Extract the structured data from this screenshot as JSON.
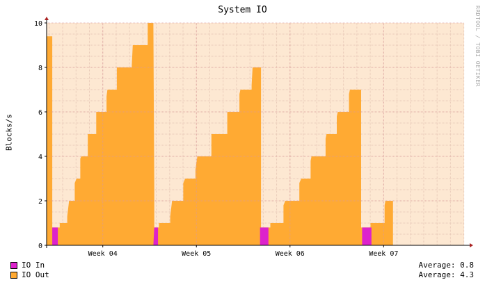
{
  "chart_data": {
    "type": "area",
    "title": "System IO",
    "ylabel": "Blocks/s",
    "xlabel": "",
    "ylim": [
      0,
      10
    ],
    "x_range": [
      3.4,
      7.86
    ],
    "y_ticks": [
      0,
      2,
      4,
      6,
      8,
      10
    ],
    "x_ticks": [
      {
        "x": 4,
        "label": "Week 04"
      },
      {
        "x": 5,
        "label": "Week 05"
      },
      {
        "x": 6,
        "label": "Week 06"
      },
      {
        "x": 7,
        "label": "Week 07"
      }
    ],
    "grid": true,
    "legend_position": "bottom-left",
    "watermark": "RRDTOOL / TOBI OETIKER",
    "series": [
      {
        "name": "IO Out",
        "color": "#ffaa33",
        "average_label": "Average: 4.3",
        "points": [
          [
            3.4,
            9.4
          ],
          [
            3.46,
            9.4
          ],
          [
            3.46,
            0.8
          ],
          [
            3.54,
            0.8
          ],
          [
            3.54,
            1.0
          ],
          [
            3.62,
            1.0
          ],
          [
            3.62,
            1.3
          ],
          [
            3.64,
            2.0
          ],
          [
            3.7,
            2.0
          ],
          [
            3.7,
            2.8
          ],
          [
            3.72,
            3.0
          ],
          [
            3.76,
            3.0
          ],
          [
            3.76,
            3.9
          ],
          [
            3.77,
            4.0
          ],
          [
            3.84,
            4.0
          ],
          [
            3.84,
            5.0
          ],
          [
            3.93,
            5.0
          ],
          [
            3.93,
            6.0
          ],
          [
            4.04,
            6.0
          ],
          [
            4.04,
            6.7
          ],
          [
            4.05,
            7.0
          ],
          [
            4.15,
            7.0
          ],
          [
            4.15,
            8.0
          ],
          [
            4.31,
            8.0
          ],
          [
            4.31,
            8.1
          ],
          [
            4.32,
            9.0
          ],
          [
            4.48,
            9.0
          ],
          [
            4.48,
            10.0
          ],
          [
            4.54,
            10.0
          ],
          [
            4.55,
            2.5
          ],
          [
            4.55,
            0.8
          ],
          [
            4.6,
            0.8
          ],
          [
            4.6,
            1.0
          ],
          [
            4.72,
            1.0
          ],
          [
            4.72,
            1.3
          ],
          [
            4.74,
            2.0
          ],
          [
            4.86,
            2.0
          ],
          [
            4.86,
            2.8
          ],
          [
            4.88,
            3.0
          ],
          [
            4.99,
            3.0
          ],
          [
            4.99,
            3.4
          ],
          [
            5.01,
            4.0
          ],
          [
            5.16,
            4.0
          ],
          [
            5.16,
            5.0
          ],
          [
            5.33,
            5.0
          ],
          [
            5.33,
            6.0
          ],
          [
            5.46,
            6.0
          ],
          [
            5.46,
            6.8
          ],
          [
            5.47,
            7.0
          ],
          [
            5.59,
            7.0
          ],
          [
            5.59,
            7.2
          ],
          [
            5.6,
            8.0
          ],
          [
            5.69,
            8.0
          ],
          [
            5.69,
            0.8
          ],
          [
            5.79,
            0.8
          ],
          [
            5.79,
            1.0
          ],
          [
            5.93,
            1.0
          ],
          [
            5.93,
            1.8
          ],
          [
            5.95,
            2.0
          ],
          [
            6.1,
            2.0
          ],
          [
            6.1,
            2.8
          ],
          [
            6.12,
            3.0
          ],
          [
            6.22,
            3.0
          ],
          [
            6.22,
            3.8
          ],
          [
            6.23,
            4.0
          ],
          [
            6.38,
            4.0
          ],
          [
            6.38,
            4.8
          ],
          [
            6.39,
            5.0
          ],
          [
            6.5,
            5.0
          ],
          [
            6.5,
            5.8
          ],
          [
            6.51,
            6.0
          ],
          [
            6.63,
            6.0
          ],
          [
            6.63,
            6.8
          ],
          [
            6.64,
            7.0
          ],
          [
            6.76,
            7.0
          ],
          [
            6.76,
            0.8
          ],
          [
            6.86,
            0.8
          ],
          [
            6.86,
            1.0
          ],
          [
            7.01,
            1.0
          ],
          [
            7.01,
            1.8
          ],
          [
            7.02,
            2.0
          ],
          [
            7.1,
            2.0
          ],
          [
            7.1,
            2.5
          ]
        ]
      },
      {
        "name": "IO In",
        "color": "#dd22cc",
        "average_label": "Average: 0.8",
        "points": [
          [
            3.4,
            0.0
          ],
          [
            3.46,
            0.0
          ],
          [
            3.46,
            0.8
          ],
          [
            3.52,
            0.8
          ],
          [
            3.52,
            0.0
          ],
          [
            4.54,
            0.0
          ],
          [
            4.55,
            0.8
          ],
          [
            4.59,
            0.8
          ],
          [
            4.59,
            0.0
          ],
          [
            5.68,
            0.0
          ],
          [
            5.68,
            0.8
          ],
          [
            5.77,
            0.8
          ],
          [
            5.77,
            0.0
          ],
          [
            6.77,
            0.0
          ],
          [
            6.77,
            0.8
          ],
          [
            6.87,
            0.8
          ],
          [
            6.87,
            0.0
          ],
          [
            7.1,
            0.0
          ]
        ]
      }
    ]
  }
}
